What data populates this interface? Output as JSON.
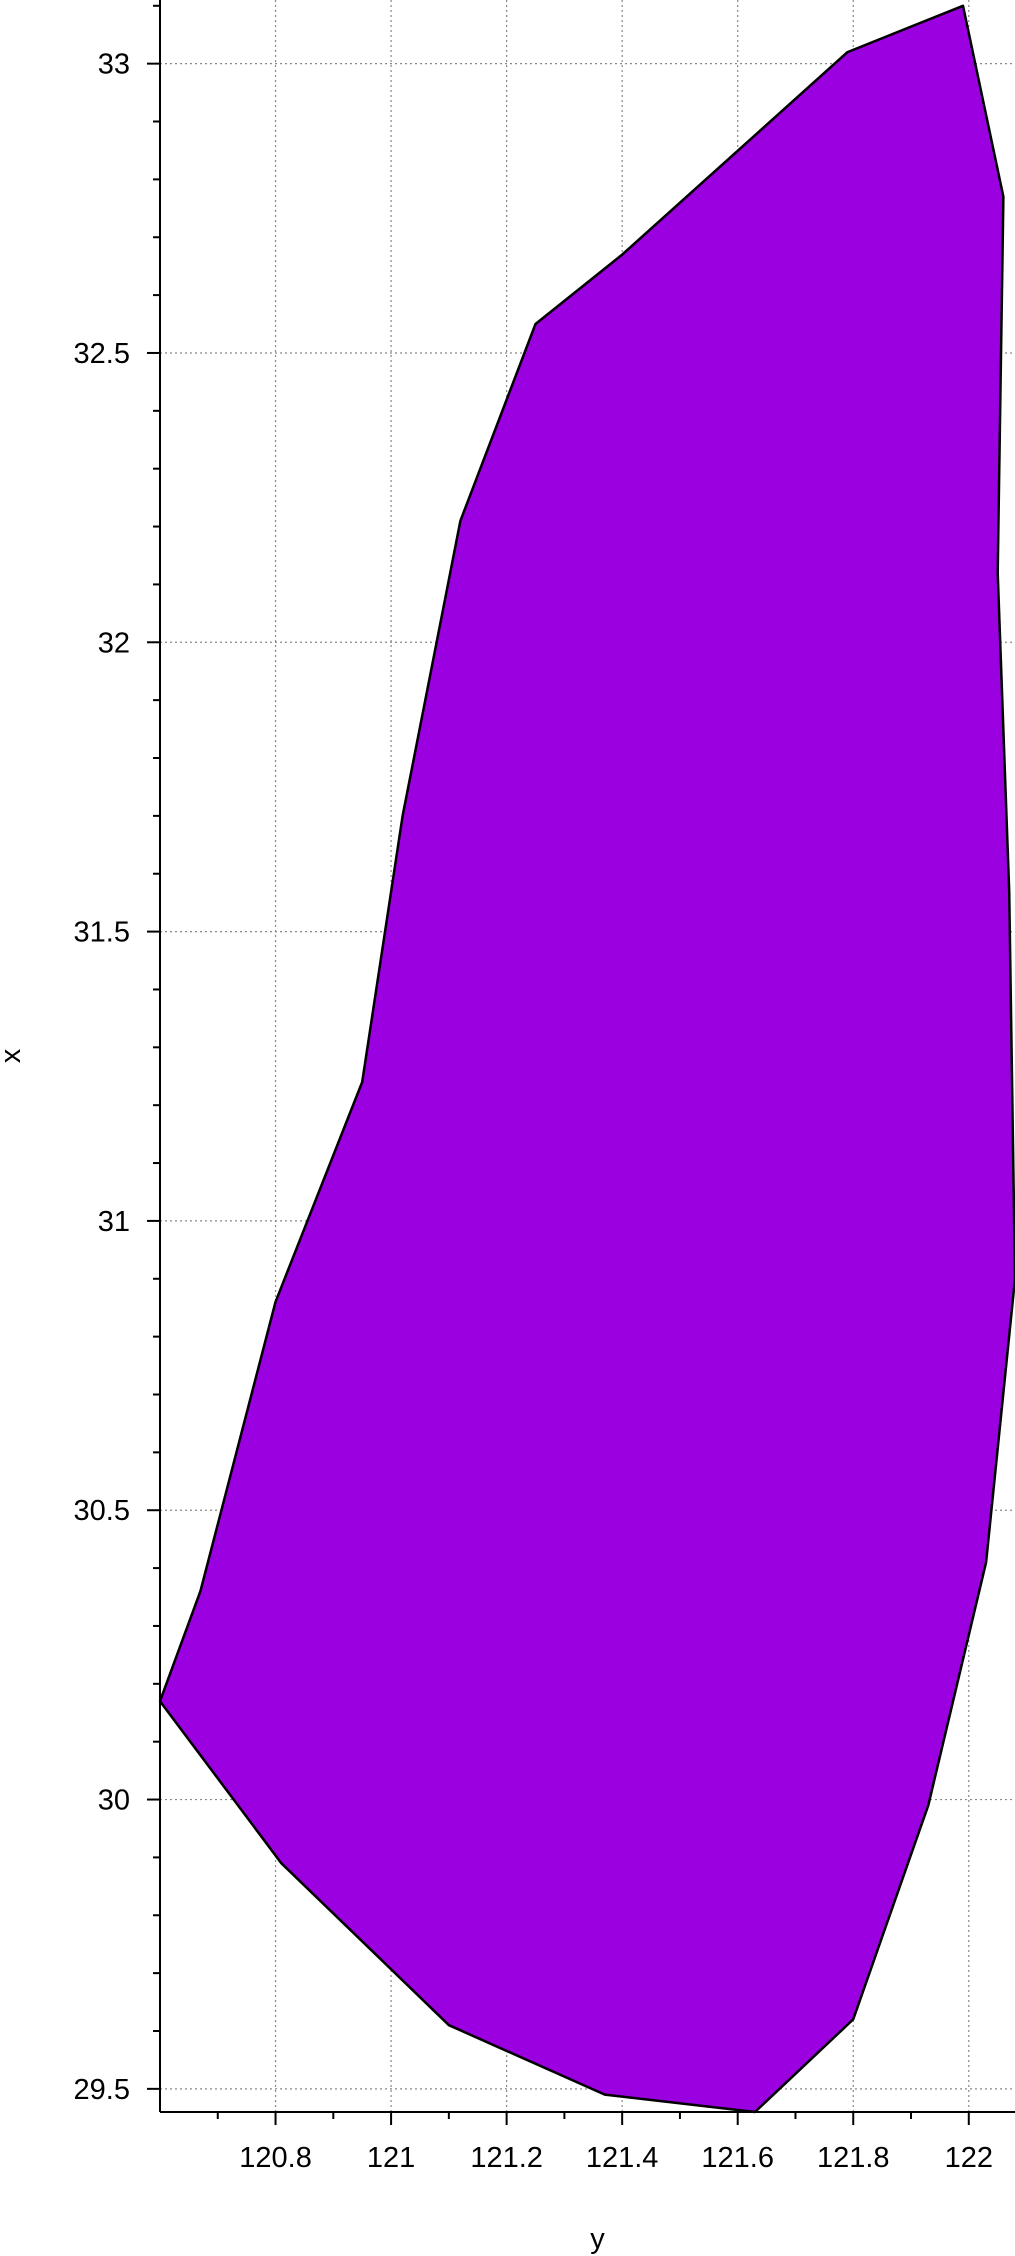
{
  "chart_data": {
    "type": "area",
    "title": "",
    "xlabel": "y",
    "ylabel": "x",
    "xlim": [
      120.6,
      122.08
    ],
    "ylim": [
      29.46,
      33.11
    ],
    "grid": true,
    "colors": {
      "fill": "#9b00e0",
      "stroke": "#000000",
      "grid": "#888888",
      "axis": "#000000"
    },
    "x_ticks": [
      {
        "value": 120.8,
        "label": "120.8"
      },
      {
        "value": 121,
        "label": "121"
      },
      {
        "value": 121.2,
        "label": "121.2"
      },
      {
        "value": 121.4,
        "label": "121.4"
      },
      {
        "value": 121.6,
        "label": "121.6"
      },
      {
        "value": 121.8,
        "label": "121.8"
      },
      {
        "value": 122,
        "label": "122"
      }
    ],
    "x_minor_ticks": [
      120.7,
      120.9,
      121.1,
      121.3,
      121.5,
      121.7,
      121.9
    ],
    "y_ticks": [
      {
        "value": 29.5,
        "label": "29.5"
      },
      {
        "value": 30,
        "label": "30"
      },
      {
        "value": 30.5,
        "label": "30.5"
      },
      {
        "value": 31,
        "label": "31"
      },
      {
        "value": 31.5,
        "label": "31.5"
      },
      {
        "value": 32,
        "label": "32"
      },
      {
        "value": 32.5,
        "label": "32.5"
      },
      {
        "value": 33,
        "label": "33"
      }
    ],
    "y_minor_ticks": [
      29.6,
      29.7,
      29.8,
      29.9,
      30.1,
      30.2,
      30.3,
      30.4,
      30.6,
      30.7,
      30.8,
      30.9,
      31.1,
      31.2,
      31.3,
      31.4,
      31.6,
      31.7,
      31.8,
      31.9,
      32.1,
      32.2,
      32.3,
      32.4,
      32.6,
      32.7,
      32.8,
      32.9,
      33.1
    ],
    "series": [
      {
        "points": [
          {
            "x": 121.99,
            "y": 33.1
          },
          {
            "x": 122.06,
            "y": 32.77
          },
          {
            "x": 122.05,
            "y": 32.12
          },
          {
            "x": 122.07,
            "y": 31.57
          },
          {
            "x": 122.08,
            "y": 30.9
          },
          {
            "x": 122.03,
            "y": 30.41
          },
          {
            "x": 121.93,
            "y": 29.99
          },
          {
            "x": 121.8,
            "y": 29.62
          },
          {
            "x": 121.63,
            "y": 29.46
          },
          {
            "x": 121.37,
            "y": 29.49
          },
          {
            "x": 121.1,
            "y": 29.61
          },
          {
            "x": 120.81,
            "y": 29.89
          },
          {
            "x": 120.6,
            "y": 30.17
          },
          {
            "x": 120.67,
            "y": 30.36
          },
          {
            "x": 120.8,
            "y": 30.86
          },
          {
            "x": 120.95,
            "y": 31.24
          },
          {
            "x": 121.02,
            "y": 31.7
          },
          {
            "x": 121.12,
            "y": 32.21
          },
          {
            "x": 121.25,
            "y": 32.55
          },
          {
            "x": 121.4,
            "y": 32.67
          },
          {
            "x": 121.79,
            "y": 33.02
          }
        ]
      }
    ]
  }
}
